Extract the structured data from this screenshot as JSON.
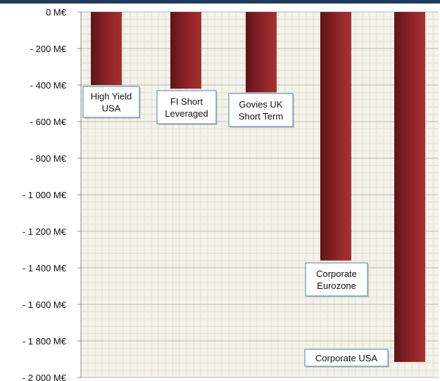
{
  "chart_data": {
    "type": "bar",
    "categories": [
      "High Yield USA",
      "FI Short Leveraged",
      "Govies UK Short Term",
      "Corporate Eurozone",
      "Corporate USA"
    ],
    "values": [
      -400,
      -420,
      -440,
      -1360,
      -1915
    ],
    "labels": [
      [
        "High Yield",
        "USA"
      ],
      [
        "FI Short",
        "Leveraged"
      ],
      [
        "Govies UK",
        "Short Term"
      ],
      [
        "Corporate",
        "Eurozone"
      ],
      [
        "Corporate USA"
      ]
    ],
    "yticks": [
      0,
      -200,
      -400,
      -600,
      -800,
      -1000,
      -1200,
      -1400,
      -1600,
      -1800,
      -2000
    ],
    "ytick_labels": [
      "0 M€",
      "- 200 M€",
      "- 400 M€",
      "- 600 M€",
      "- 800 M€",
      "- 1 000 M€",
      "- 1 200 M€",
      "- 1 400 M€",
      "- 1 600 M€",
      "- 1 800 M€",
      "- 2 000 M€"
    ],
    "ylim": [
      -2000,
      0
    ],
    "title": "",
    "xlabel": "",
    "ylabel": "",
    "grid": true,
    "colors": {
      "bar_dark": "#5e1417",
      "bar_mid": "#8e2428",
      "bar_light": "#a63032",
      "plot_bg": "#f4f3ea",
      "grid_major": "#b9b9b3",
      "grid_minor": "#e1dfd2",
      "callout_border": "#4f7fb0"
    }
  }
}
